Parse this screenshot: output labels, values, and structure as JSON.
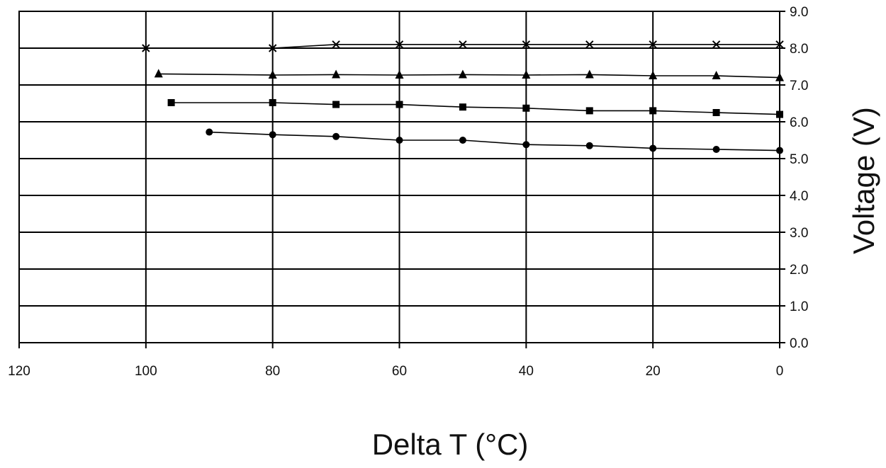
{
  "chart_data": {
    "type": "line",
    "xlabel": "Delta T (°C)",
    "ylabel": "Voltage (V)",
    "xlim": [
      120,
      0
    ],
    "ylim": [
      0,
      9
    ],
    "x_ticks": [
      "120",
      "100",
      "80",
      "60",
      "40",
      "20",
      "0"
    ],
    "y_ticks": [
      "0.0",
      "1.0",
      "2.0",
      "3.0",
      "4.0",
      "5.0",
      "6.0",
      "7.0",
      "8.0",
      "9.0"
    ],
    "x_tick_values": [
      120,
      100,
      80,
      60,
      40,
      20,
      0
    ],
    "y_tick_values": [
      0,
      1,
      2,
      3,
      4,
      5,
      6,
      7,
      8,
      9
    ],
    "x_axis_inverted": true,
    "y_axis_position": "right",
    "grid": true,
    "line_color": "#000000",
    "series": [
      {
        "marker": "cross",
        "points": [
          [
            100,
            8.0
          ],
          [
            80,
            8.0
          ],
          [
            70,
            8.1
          ],
          [
            60,
            8.1
          ],
          [
            50,
            8.1
          ],
          [
            40,
            8.1
          ],
          [
            30,
            8.1
          ],
          [
            20,
            8.1
          ],
          [
            10,
            8.1
          ],
          [
            0,
            8.1
          ]
        ]
      },
      {
        "marker": "triangle",
        "points": [
          [
            98,
            7.3
          ],
          [
            80,
            7.27
          ],
          [
            70,
            7.28
          ],
          [
            60,
            7.27
          ],
          [
            50,
            7.28
          ],
          [
            40,
            7.27
          ],
          [
            30,
            7.28
          ],
          [
            20,
            7.25
          ],
          [
            10,
            7.25
          ],
          [
            0,
            7.2
          ]
        ]
      },
      {
        "marker": "square",
        "points": [
          [
            96,
            6.52
          ],
          [
            80,
            6.52
          ],
          [
            70,
            6.47
          ],
          [
            60,
            6.47
          ],
          [
            50,
            6.4
          ],
          [
            40,
            6.37
          ],
          [
            30,
            6.3
          ],
          [
            20,
            6.3
          ],
          [
            10,
            6.25
          ],
          [
            0,
            6.2
          ]
        ]
      },
      {
        "marker": "circle",
        "points": [
          [
            90,
            5.72
          ],
          [
            80,
            5.65
          ],
          [
            70,
            5.6
          ],
          [
            60,
            5.5
          ],
          [
            50,
            5.5
          ],
          [
            40,
            5.38
          ],
          [
            30,
            5.35
          ],
          [
            20,
            5.28
          ],
          [
            10,
            5.25
          ],
          [
            0,
            5.22
          ]
        ]
      }
    ]
  }
}
